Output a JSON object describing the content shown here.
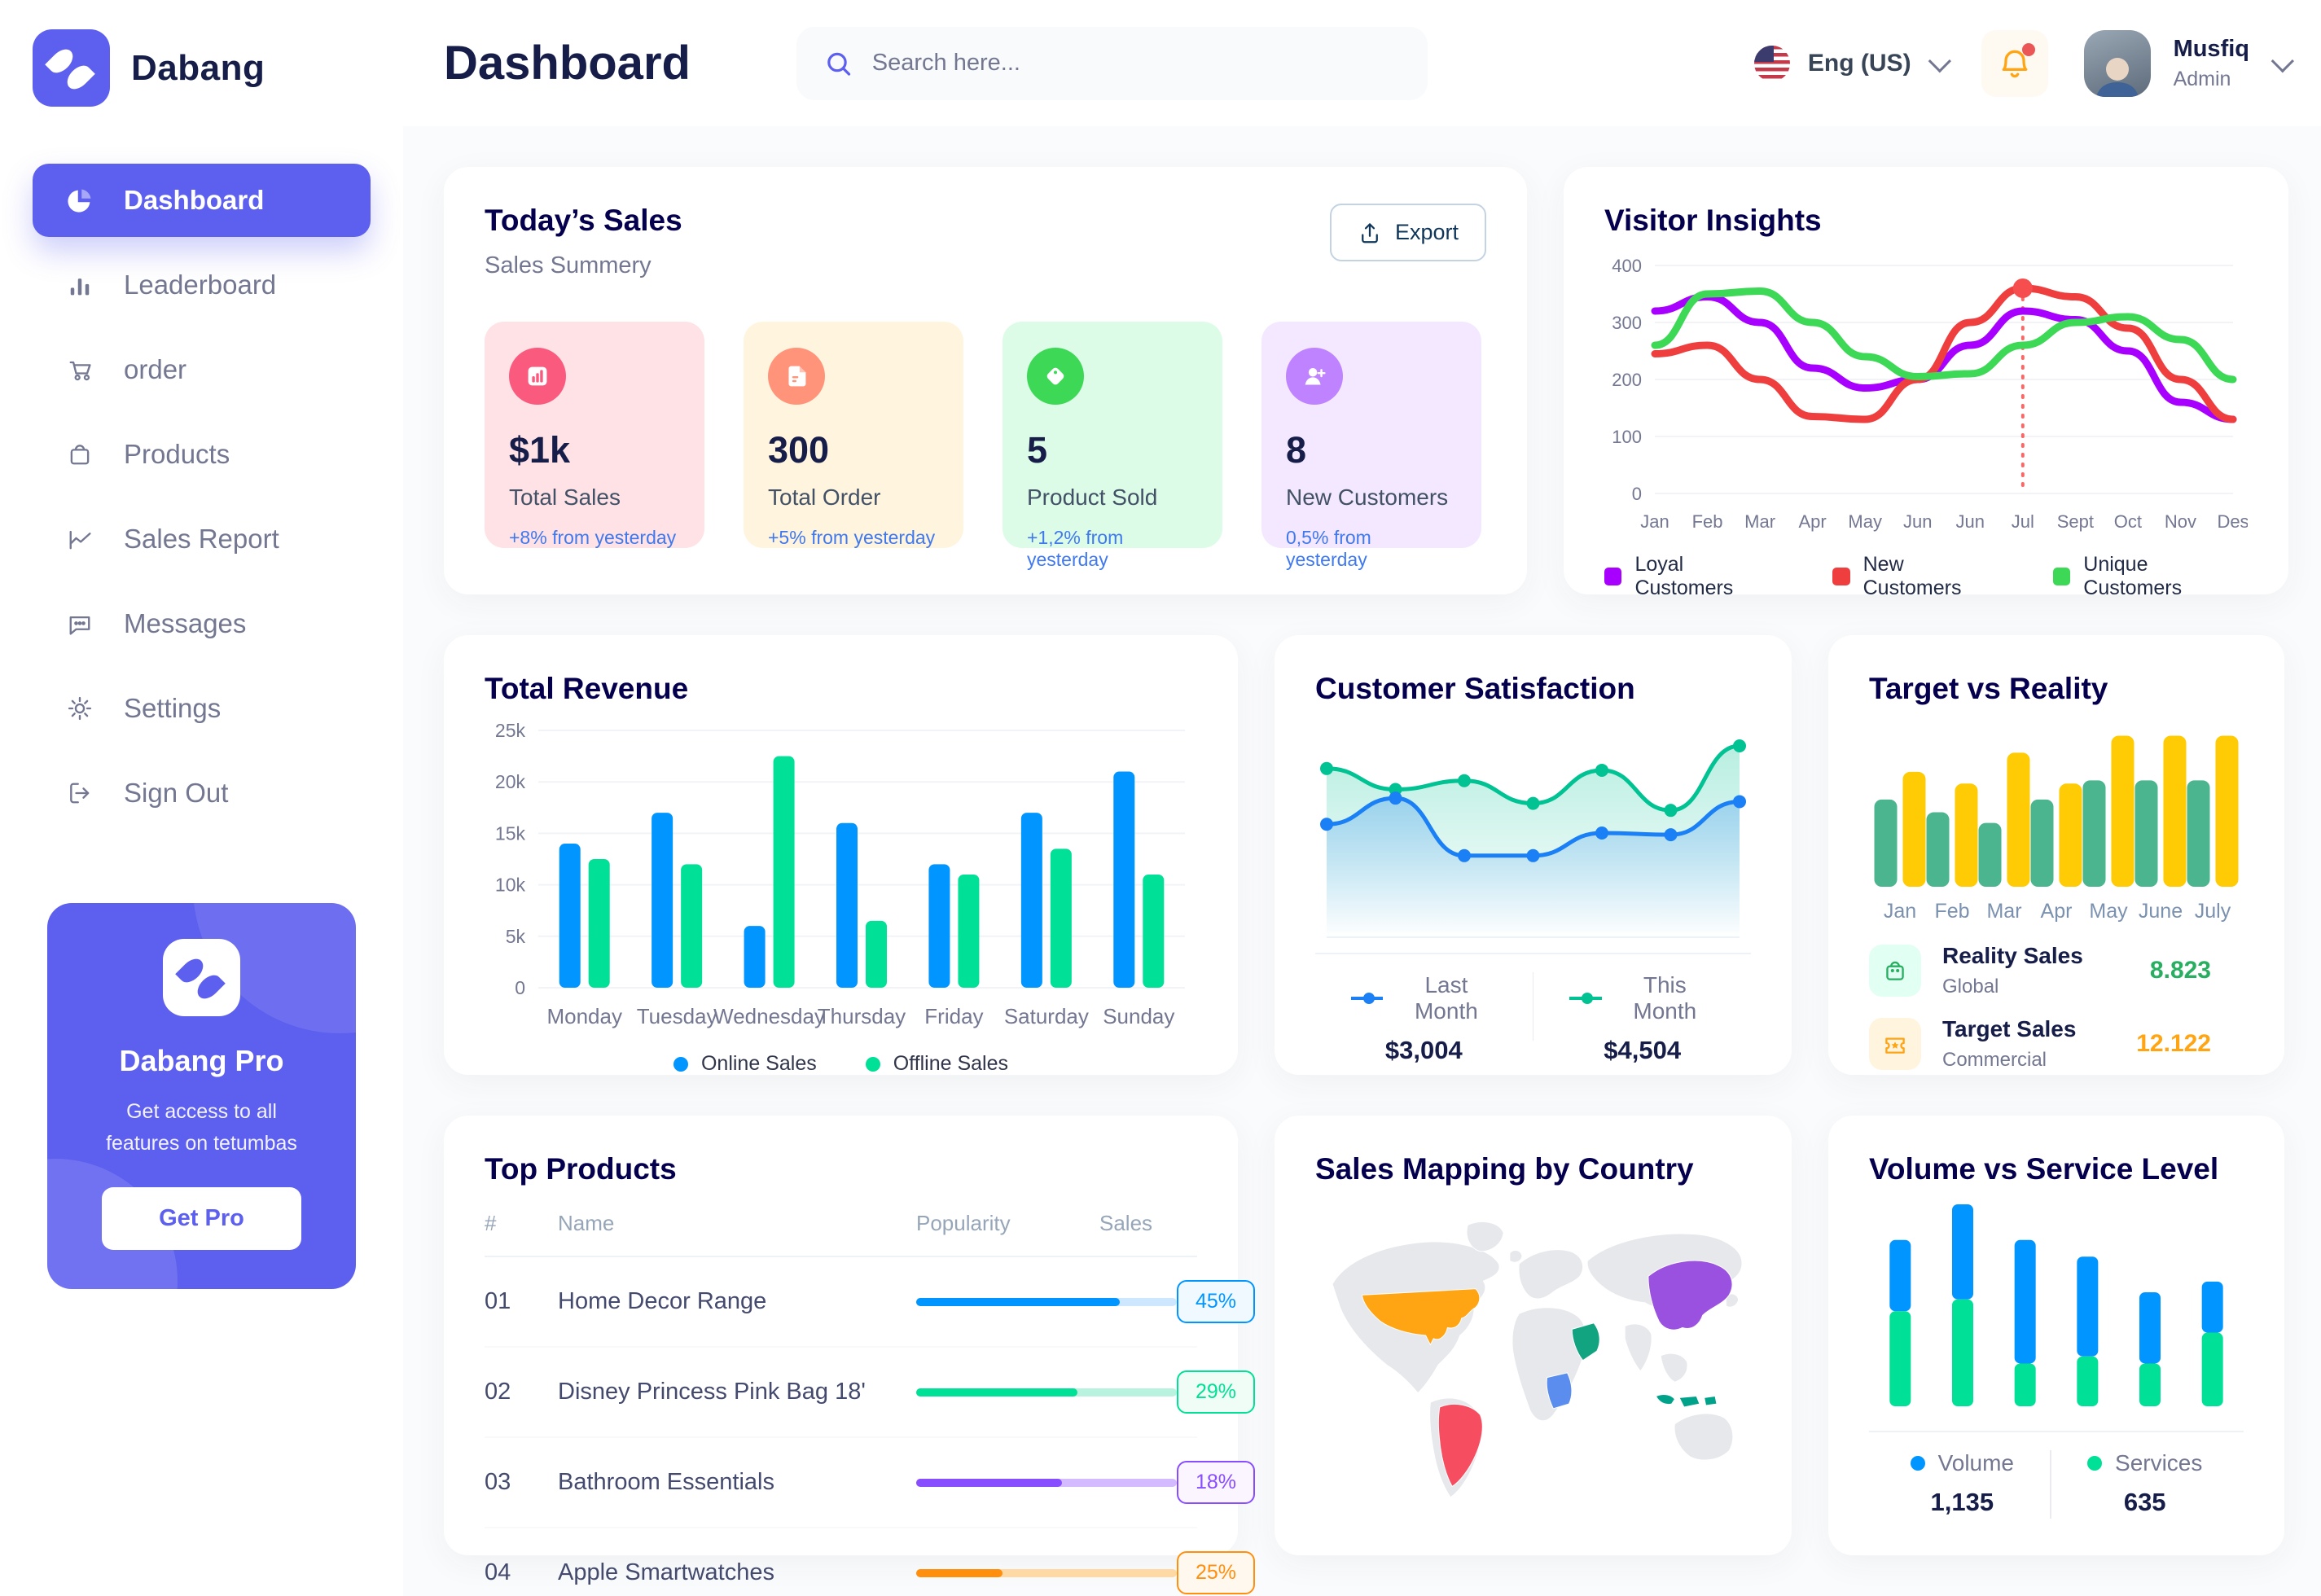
{
  "app": {
    "brand": "Dabang"
  },
  "header": {
    "title": "Dashboard",
    "search_placeholder": "Search here...",
    "language": "Eng (US)",
    "user": {
      "name": "Musfiq",
      "role": "Admin"
    }
  },
  "sidebar": {
    "items": [
      {
        "label": "Dashboard",
        "icon": "dashboard",
        "active": true
      },
      {
        "label": "Leaderboard",
        "icon": "leaderboard",
        "active": false
      },
      {
        "label": "order",
        "icon": "order",
        "active": false
      },
      {
        "label": "Products",
        "icon": "products",
        "active": false
      },
      {
        "label": "Sales Report",
        "icon": "sales-report",
        "active": false
      },
      {
        "label": "Messages",
        "icon": "messages",
        "active": false
      },
      {
        "label": "Settings",
        "icon": "settings",
        "active": false
      },
      {
        "label": "Sign Out",
        "icon": "sign-out",
        "active": false
      }
    ],
    "pro": {
      "title": "Dabang Pro",
      "subtitle": "Get access to all features on tetumbas",
      "cta": "Get Pro"
    }
  },
  "today_sales": {
    "title": "Today’s Sales",
    "subtitle": "Sales Summery",
    "export_label": "Export",
    "cards": [
      {
        "value": "$1k",
        "label": "Total Sales",
        "delta": "+8% from yesterday",
        "bg": "#FFE2E5",
        "icon_bg": "#FA5A7D",
        "icon": "chart"
      },
      {
        "value": "300",
        "label": "Total Order",
        "delta": "+5% from yesterday",
        "bg": "#FFF4DE",
        "icon_bg": "#FF947A",
        "icon": "file"
      },
      {
        "value": "5",
        "label": "Product Sold",
        "delta": "+1,2% from yesterday",
        "bg": "#DCFCE7",
        "icon_bg": "#3CD856",
        "icon": "tag"
      },
      {
        "value": "8",
        "label": "New Customers",
        "delta": "0,5% from yesterday",
        "bg": "#F3E8FF",
        "icon_bg": "#BF83FF",
        "icon": "user-plus"
      }
    ]
  },
  "chart_data": {
    "visitor_insights": {
      "type": "line",
      "title": "Visitor Insights",
      "x": [
        "Jan",
        "Feb",
        "Mar",
        "Apr",
        "May",
        "Jun",
        "Jun",
        "Jul",
        "Sept",
        "Oct",
        "Nov",
        "Des"
      ],
      "ylim": [
        0,
        400
      ],
      "yticks": [
        0,
        100,
        200,
        300,
        400
      ],
      "grid": true,
      "legend_position": "bottom",
      "series": [
        {
          "name": "Loyal Customers",
          "color": "#A700FF",
          "values": [
            320,
            345,
            300,
            220,
            185,
            200,
            260,
            320,
            305,
            250,
            160,
            130
          ]
        },
        {
          "name": "New Customers",
          "color": "#EF3E3E",
          "values": [
            245,
            260,
            200,
            135,
            130,
            200,
            300,
            360,
            345,
            290,
            200,
            130
          ]
        },
        {
          "name": "Unique Customers",
          "color": "#3CD856",
          "values": [
            260,
            350,
            355,
            300,
            240,
            205,
            210,
            260,
            300,
            310,
            270,
            200
          ]
        }
      ],
      "highlight": {
        "x_index": 7,
        "series": "New Customers",
        "value": 360
      }
    },
    "total_revenue": {
      "type": "bar",
      "title": "Total Revenue",
      "categories": [
        "Monday",
        "Tuesday",
        "Wednesday",
        "Thursday",
        "Friday",
        "Saturday",
        "Sunday"
      ],
      "ylim": [
        0,
        25
      ],
      "yticks": [
        0,
        5,
        10,
        15,
        20,
        25
      ],
      "ytick_labels": [
        "0",
        "5k",
        "10k",
        "15k",
        "20k",
        "25k"
      ],
      "grid": true,
      "legend_position": "bottom",
      "series": [
        {
          "name": "Online Sales",
          "color": "#0095FF",
          "values": [
            14,
            17,
            6,
            16,
            12,
            17,
            21
          ]
        },
        {
          "name": "Offline Sales",
          "color": "#00E096",
          "values": [
            12.5,
            12,
            22.5,
            6.5,
            11,
            13.5,
            11
          ]
        }
      ]
    },
    "customer_satisfaction": {
      "type": "area",
      "title": "Customer Satisfaction",
      "ylim": [
        0,
        100
      ],
      "legend_position": "bottom",
      "series": [
        {
          "name": "Last Month",
          "color": "#1B7FF5",
          "total": "$3,004",
          "values": [
            48,
            63,
            30,
            30,
            43,
            42,
            61
          ]
        },
        {
          "name": "This Month",
          "color": "#00C292",
          "total": "$4,504",
          "values": [
            80,
            68,
            73,
            60,
            79,
            56,
            93
          ]
        }
      ]
    },
    "target_vs_reality": {
      "type": "bar",
      "title": "Target vs Reality",
      "categories": [
        "Jan",
        "Feb",
        "Mar",
        "Apr",
        "May",
        "June",
        "July"
      ],
      "ylim": [
        0,
        15
      ],
      "series": [
        {
          "name": "Reality Sales",
          "color": "#4AB58E",
          "values": [
            8.2,
            7,
            6,
            8.2,
            10,
            10,
            10
          ]
        },
        {
          "name": "Target Sales",
          "color": "#FFCB05",
          "values": [
            10.8,
            9.7,
            12.6,
            9.7,
            14.2,
            14.2,
            14.2
          ]
        }
      ],
      "legend": [
        {
          "name": "Reality Sales",
          "sub": "Global",
          "value": "8.823",
          "value_color": "#27AE60",
          "tile_bg": "#E2FFF3",
          "icon": "bag",
          "icon_color": "#27AE60"
        },
        {
          "name": "Target Sales",
          "sub": "Commercial",
          "value": "12.122",
          "value_color": "#FFA412",
          "tile_bg": "#FFF4DE",
          "icon": "ticket",
          "icon_color": "#FFA412"
        }
      ]
    },
    "top_products": {
      "type": "table",
      "title": "Top Products",
      "columns": [
        "#",
        "Name",
        "Popularity",
        "Sales"
      ],
      "rows": [
        {
          "num": "01",
          "name": "Home Decor Range",
          "popularity": 78,
          "sales": "45%",
          "color": "#0095FF",
          "track": "#CDE7FF",
          "badge_bg": "#F0F9FF"
        },
        {
          "num": "02",
          "name": "Disney Princess Pink Bag 18'",
          "popularity": 62,
          "sales": "29%",
          "color": "#00E096",
          "track": "#B9F3DF",
          "badge_bg": "#F0FDF7"
        },
        {
          "num": "03",
          "name": "Bathroom Essentials",
          "popularity": 56,
          "sales": "18%",
          "color": "#884DFF",
          "track": "#D4BBFF",
          "badge_bg": "#FBF5FF"
        },
        {
          "num": "04",
          "name": "Apple Smartwatches",
          "popularity": 33,
          "sales": "25%",
          "color": "#FF8F0D",
          "track": "#FFD9A4",
          "badge_bg": "#FFF8EF"
        }
      ]
    },
    "sales_mapping": {
      "type": "map",
      "title": "Sales Mapping by Country",
      "countries": [
        {
          "name": "United States",
          "color": "#FFA412"
        },
        {
          "name": "Brazil",
          "color": "#F64E60"
        },
        {
          "name": "China",
          "color": "#9B51E0"
        },
        {
          "name": "Saudi Arabia",
          "color": "#12A380"
        },
        {
          "name": "DR Congo",
          "color": "#5A8DEE"
        },
        {
          "name": "Indonesia",
          "color": "#00A389"
        }
      ]
    },
    "volume_service": {
      "type": "stacked-bar",
      "title": "Volume vs Service Level",
      "legend_position": "bottom",
      "series": [
        {
          "name": "Volume",
          "color": "#0095FF",
          "total": "1,135",
          "values": [
            6,
            8,
            10.4,
            8.4,
            6,
            4.3
          ]
        },
        {
          "name": "Services",
          "color": "#00E096",
          "total": "635",
          "values": [
            8,
            9,
            3.6,
            4.2,
            3.6,
            6.2
          ]
        }
      ]
    }
  }
}
